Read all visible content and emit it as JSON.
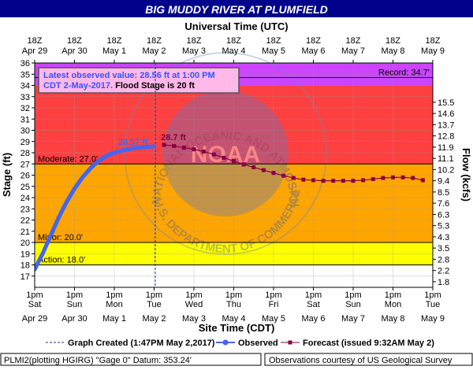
{
  "title": "BIG MUDDY RIVER AT PLUMFIELD",
  "top_axis_title": "Universal Time (UTC)",
  "bottom_axis_title": "Site Time (CDT)",
  "left_axis_title": "Stage (ft)",
  "right_axis_title": "Flow (kcfs)",
  "utc_ticks": [
    {
      "line1": "18Z",
      "line2": "Apr 29"
    },
    {
      "line1": "18Z",
      "line2": "Apr 30"
    },
    {
      "line1": "18Z",
      "line2": "May 1"
    },
    {
      "line1": "18Z",
      "line2": "May 2"
    },
    {
      "line1": "18Z",
      "line2": "May 3"
    },
    {
      "line1": "18Z",
      "line2": "May 4"
    },
    {
      "line1": "18Z",
      "line2": "May 5"
    },
    {
      "line1": "18Z",
      "line2": "May 6"
    },
    {
      "line1": "18Z",
      "line2": "May 7"
    },
    {
      "line1": "18Z",
      "line2": "May 8"
    },
    {
      "line1": "18Z",
      "line2": "May 9"
    }
  ],
  "cdt_ticks": [
    {
      "line1": "1pm",
      "line2": "Sat",
      "line3": "Apr 29"
    },
    {
      "line1": "1pm",
      "line2": "Sun",
      "line3": "Apr 30"
    },
    {
      "line1": "1pm",
      "line2": "Mon",
      "line3": "May 1"
    },
    {
      "line1": "1pm",
      "line2": "Tue",
      "line3": "May 2"
    },
    {
      "line1": "1pm",
      "line2": "Wed",
      "line3": "May 3"
    },
    {
      "line1": "1pm",
      "line2": "Thu",
      "line3": "May 4"
    },
    {
      "line1": "1pm",
      "line2": "Fri",
      "line3": "May 5"
    },
    {
      "line1": "1pm",
      "line2": "Sat",
      "line3": "May 6"
    },
    {
      "line1": "1pm",
      "line2": "Sun",
      "line3": "May 7"
    },
    {
      "line1": "1pm",
      "line2": "Mon",
      "line3": "May 8"
    },
    {
      "line1": "1pm",
      "line2": "Tue",
      "line3": "May 9"
    }
  ],
  "flow_ticks": [
    {
      "label": "15.5",
      "stage": 32.5
    },
    {
      "label": "14.6",
      "stage": 31.5
    },
    {
      "label": "13.7",
      "stage": 30.5
    },
    {
      "label": "12.8",
      "stage": 29.5
    },
    {
      "label": "11.9",
      "stage": 28.5
    },
    {
      "label": "11.1",
      "stage": 27.5
    },
    {
      "label": "10.2",
      "stage": 26.5
    },
    {
      "label": "9.4",
      "stage": 25.5
    },
    {
      "label": "8.5",
      "stage": 24.5
    },
    {
      "label": "7.6",
      "stage": 23.5
    },
    {
      "label": "6.3",
      "stage": 22.5
    },
    {
      "label": "5.3",
      "stage": 21.5
    },
    {
      "label": "4.3",
      "stage": 20.5
    },
    {
      "label": "3.5",
      "stage": 19.5
    },
    {
      "label": "2.8",
      "stage": 18.5
    },
    {
      "label": "2.2",
      "stage": 17.5
    },
    {
      "label": "1.8",
      "stage": 16.5
    }
  ],
  "thresholds": [
    {
      "name": "Action",
      "label": "Action: 18.0'",
      "value": 18.0
    },
    {
      "name": "Minor",
      "label": "Minor: 20.0'",
      "value": 20.0
    },
    {
      "name": "Moderate",
      "label": "Moderate: 27.0'",
      "value": 27.0
    },
    {
      "name": "Record",
      "label": "Record: 34.7'",
      "value": 34.7
    }
  ],
  "bands": [
    {
      "from": 16,
      "to": 18,
      "color": "#ffffff"
    },
    {
      "from": 18,
      "to": 20,
      "color": "#ffff00"
    },
    {
      "from": 20,
      "to": 27,
      "color": "#ffa500"
    },
    {
      "from": 27,
      "to": 34,
      "color": "#ff4040"
    },
    {
      "from": 34,
      "to": 36,
      "color": "#cc44ff"
    }
  ],
  "info_box": {
    "line1": "Latest observed value: 28.56 ft at 1:00 PM",
    "line2_date": "CDT 2-May-2017.",
    "line2_flood": " Flood Stage is 20 ft"
  },
  "peak_observed_label": "28.57 ft",
  "peak_forecast_label": "28.7 ft",
  "legend": {
    "graph_created": "Graph Created (1:47PM May 2,2017)",
    "observed": "Observed",
    "forecast": "Forecast (issued 9:32AM May 2)"
  },
  "footer_left": "PLMI2(plotting HGIRG) \"Gage 0\" Datum: 353.24'",
  "footer_right": "Observations courtesy of US Geological Survey",
  "watermark": {
    "center": "NOAA",
    "ring": "NATIONAL OCEANIC AND ATMOSPHERIC ADMINISTRATION",
    "bottom": "U.S. DEPARTMENT OF COMMERCE"
  },
  "colors": {
    "observed": "#4466ee",
    "forecast": "#880044",
    "title_bg": "#00008b",
    "info_text": "#3355ff"
  },
  "chart_data": {
    "type": "line",
    "title": "BIG MUDDY RIVER AT PLUMFIELD",
    "xlabel": "Site Time (CDT)",
    "ylabel": "Stage (ft)",
    "y2label": "Flow (kcfs)",
    "ylim": [
      16,
      36
    ],
    "xlim": [
      0,
      10
    ],
    "x_unit_note": "days from 1pm CDT Sat Apr 29",
    "graph_created_x": 3.03,
    "series": [
      {
        "name": "Observed",
        "points": [
          [
            0.0,
            17.6
          ],
          [
            0.1,
            18.3
          ],
          [
            0.2,
            19.0
          ],
          [
            0.3,
            19.8
          ],
          [
            0.4,
            20.6
          ],
          [
            0.5,
            21.4
          ],
          [
            0.6,
            22.2
          ],
          [
            0.7,
            22.9
          ],
          [
            0.8,
            23.6
          ],
          [
            0.9,
            24.2
          ],
          [
            1.0,
            24.8
          ],
          [
            1.1,
            25.3
          ],
          [
            1.2,
            25.8
          ],
          [
            1.3,
            26.2
          ],
          [
            1.4,
            26.6
          ],
          [
            1.5,
            26.95
          ],
          [
            1.6,
            27.25
          ],
          [
            1.7,
            27.5
          ],
          [
            1.8,
            27.7
          ],
          [
            1.9,
            27.88
          ],
          [
            2.0,
            28.0
          ],
          [
            2.2,
            28.2
          ],
          [
            2.4,
            28.35
          ],
          [
            2.6,
            28.46
          ],
          [
            2.8,
            28.52
          ],
          [
            3.0,
            28.56
          ]
        ]
      },
      {
        "name": "Forecast (issued 9:32AM May 2)",
        "points": [
          [
            3.25,
            28.7
          ],
          [
            3.5,
            28.6
          ],
          [
            3.75,
            28.45
          ],
          [
            4.0,
            28.3
          ],
          [
            4.25,
            28.1
          ],
          [
            4.5,
            27.85
          ],
          [
            4.75,
            27.55
          ],
          [
            5.0,
            27.25
          ],
          [
            5.25,
            26.95
          ],
          [
            5.5,
            26.7
          ],
          [
            5.75,
            26.45
          ],
          [
            6.0,
            26.2
          ],
          [
            6.25,
            25.95
          ],
          [
            6.5,
            25.75
          ],
          [
            6.75,
            25.6
          ],
          [
            7.0,
            25.55
          ],
          [
            7.25,
            25.5
          ],
          [
            7.5,
            25.5
          ],
          [
            7.75,
            25.5
          ],
          [
            8.0,
            25.5
          ],
          [
            8.25,
            25.55
          ],
          [
            8.5,
            25.65
          ],
          [
            8.75,
            25.75
          ],
          [
            9.0,
            25.8
          ],
          [
            9.25,
            25.8
          ],
          [
            9.5,
            25.75
          ],
          [
            9.75,
            25.55
          ]
        ]
      }
    ]
  }
}
